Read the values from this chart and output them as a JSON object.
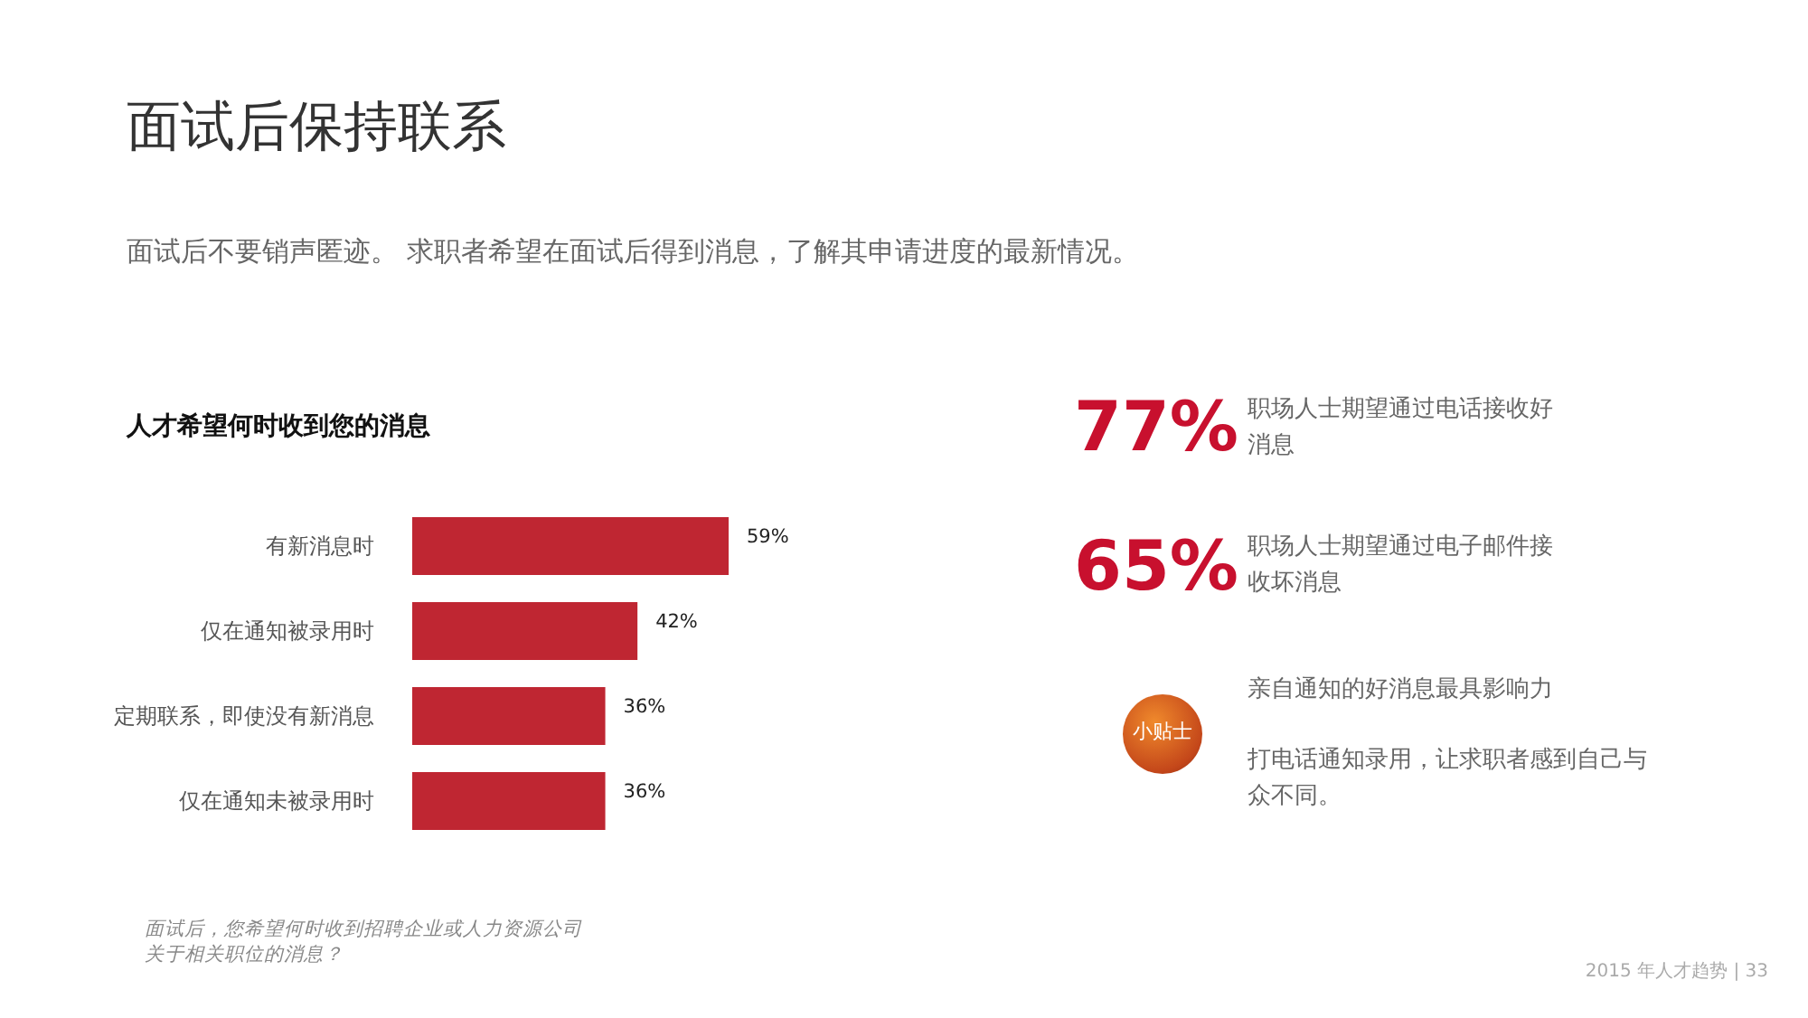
{
  "chart_data": [
    {
      "type": "bar",
      "orientation": "horizontal",
      "title": "面试后保持联系",
      "subtitle": "面试后不要销声匿迹。 求职者希望在面试后得到消息，了解其申请进度的最新情况。",
      "categories": [
        "有新消息时",
        "仅在通知被录用时",
        "定期联系，即使没有新消息",
        "仅在通知未被录用时"
      ],
      "values": [
        59,
        42,
        36,
        36
      ],
      "value_labels": [
        "59%",
        "42%",
        "36%",
        "36%"
      ],
      "color": "#bf2632",
      "annotations": [
        "人才希望何时收到您的消息",
        "面试后，您希望何时收到招聘企业或人力资源公司关于相关职位的消息？",
        "2015 年人才趋势 | 33"
      ]
    },
    {
      "type": "other",
      "annotations": [
        "77%",
        "职场人士期望通过电话接收好消息",
        "65%",
        "职场人士期望通过电子邮件接收坏消息",
        "小贴士",
        "亲自通知的好消息最具影响力",
        "打电话通知录用，让求职者感到自己与众不同。"
      ]
    }
  ]
}
